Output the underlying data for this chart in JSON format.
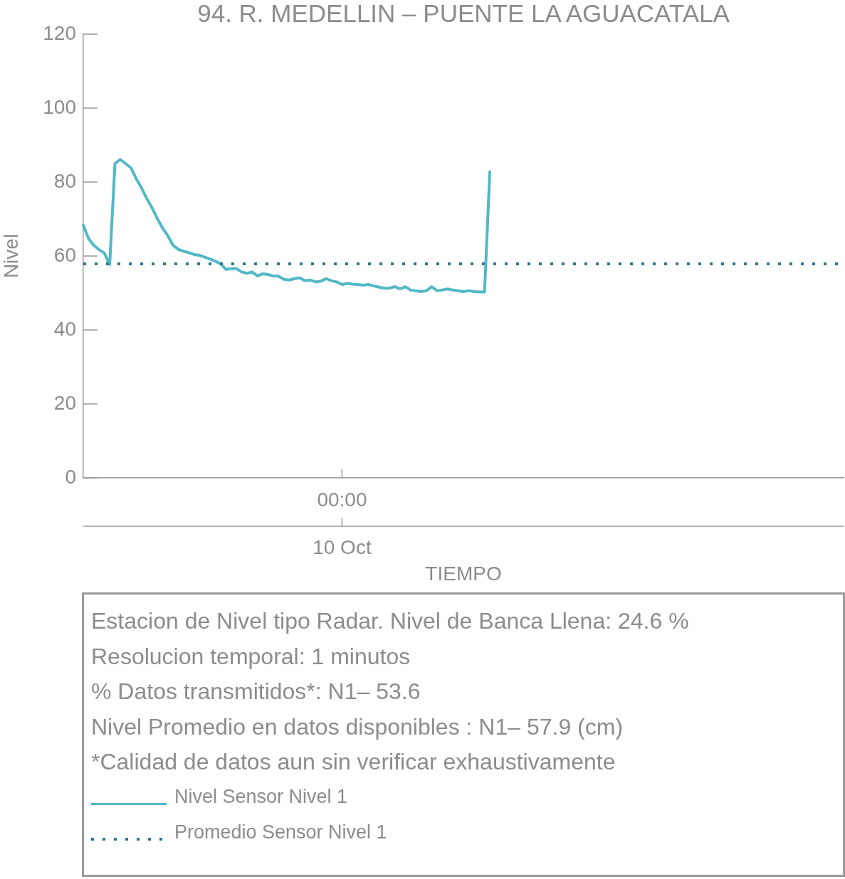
{
  "chart_data": {
    "type": "line",
    "title": "94. R. MEDELLIN – PUENTE LA AGUACATALA",
    "xlabel": "TIEMPO",
    "ylabel": "Nivel",
    "categories": [
      null,
      null,
      null,
      null,
      null,
      null,
      null,
      null,
      null,
      null,
      null,
      null,
      null,
      null,
      null,
      null,
      null,
      null,
      null,
      null,
      null,
      null,
      null,
      null,
      null,
      null,
      null,
      null,
      null,
      null,
      null,
      null,
      null,
      null,
      null,
      null,
      null,
      null,
      null,
      null,
      null,
      null,
      null,
      null,
      null,
      null,
      null,
      null,
      null,
      "00:00",
      null,
      null,
      null,
      null,
      null,
      null,
      null,
      null,
      null,
      null,
      null,
      null,
      null,
      null,
      null,
      null,
      null,
      null,
      null,
      null,
      null,
      null,
      null,
      null,
      null,
      null,
      null,
      null,
      null,
      null,
      null,
      null,
      null,
      null,
      null,
      null,
      null,
      null,
      null,
      null,
      null,
      null,
      null,
      null,
      null,
      null,
      null,
      null,
      null,
      null,
      null,
      null,
      null,
      null,
      null,
      null,
      null,
      null,
      null,
      null,
      null,
      null,
      null,
      null,
      null,
      null,
      null,
      null,
      null,
      null,
      null,
      null,
      null,
      null,
      null,
      null,
      null,
      null,
      null,
      null,
      null,
      null,
      null,
      null,
      null,
      null,
      null,
      null,
      null,
      null,
      null,
      null,
      null,
      null,
      null
    ],
    "series": [
      {
        "name": "Nivel Sensor Nivel 1",
        "color": "#52b8c6",
        "values": [
          68.3,
          64.7,
          62.9,
          61.7,
          60.8,
          57.7,
          85.0,
          86.1,
          85.0,
          83.9,
          81.0,
          78.5,
          75.6,
          73.1,
          70.2,
          67.6,
          65.5,
          62.9,
          61.8,
          61.3,
          60.9,
          60.4,
          60.2,
          59.7,
          59.2,
          58.6,
          57.9,
          56.4,
          56.6,
          56.6,
          55.7,
          55.3,
          55.7,
          54.6,
          55.2,
          55.0,
          54.6,
          54.5,
          53.7,
          53.5,
          53.9,
          54.1,
          53.3,
          53.5,
          53.0,
          53.2,
          53.9,
          53.3,
          53.0,
          52.3,
          52.6,
          52.4,
          52.3,
          52.1,
          52.3,
          51.9,
          51.6,
          51.3,
          51.3,
          51.7,
          51.1,
          51.7,
          50.8,
          50.6,
          50.4,
          50.6,
          51.7,
          50.6,
          50.8,
          51.1,
          50.8,
          50.6,
          50.4,
          50.6,
          50.4,
          50.3,
          50.3,
          82.8,
          null,
          null,
          null,
          null,
          null,
          null,
          null,
          null,
          null,
          null,
          null,
          null,
          null,
          null,
          null,
          null,
          null,
          null,
          null,
          null,
          null,
          null,
          null,
          null,
          null,
          null,
          null,
          null,
          null,
          null,
          null,
          null,
          null,
          null,
          null,
          null,
          null,
          null,
          null,
          null,
          null,
          null,
          null,
          null,
          null,
          null,
          null,
          null,
          null,
          null,
          null,
          null,
          null,
          null,
          null,
          null,
          null,
          null,
          null,
          null,
          null,
          null,
          null,
          null,
          null,
          null,
          null
        ]
      }
    ],
    "ylim": [
      0,
      120
    ],
    "yticks": [
      0,
      20,
      40,
      60,
      80,
      100,
      120
    ],
    "ref_lines": [
      {
        "axis": "y",
        "value": 57.9,
        "label": "Promedio Sensor Nivel 1",
        "color": "#2b7590",
        "line_style": "dotted"
      }
    ],
    "grid": false,
    "legend": "bottom",
    "annotations": [
      {
        "text": "10 Oct",
        "x": "00:00"
      },
      "Estacion de Nivel tipo Radar. Nivel de Banca Llena: 24.6 %",
      "Resolucion temporal: 1 minutos",
      "% Datos transmitidos*: N1– 53.6",
      "Nivel Promedio en datos disponibles : N1– 57.9 (cm)",
      "*Calidad de datos aun sin verificar exhaustivamente"
    ]
  }
}
